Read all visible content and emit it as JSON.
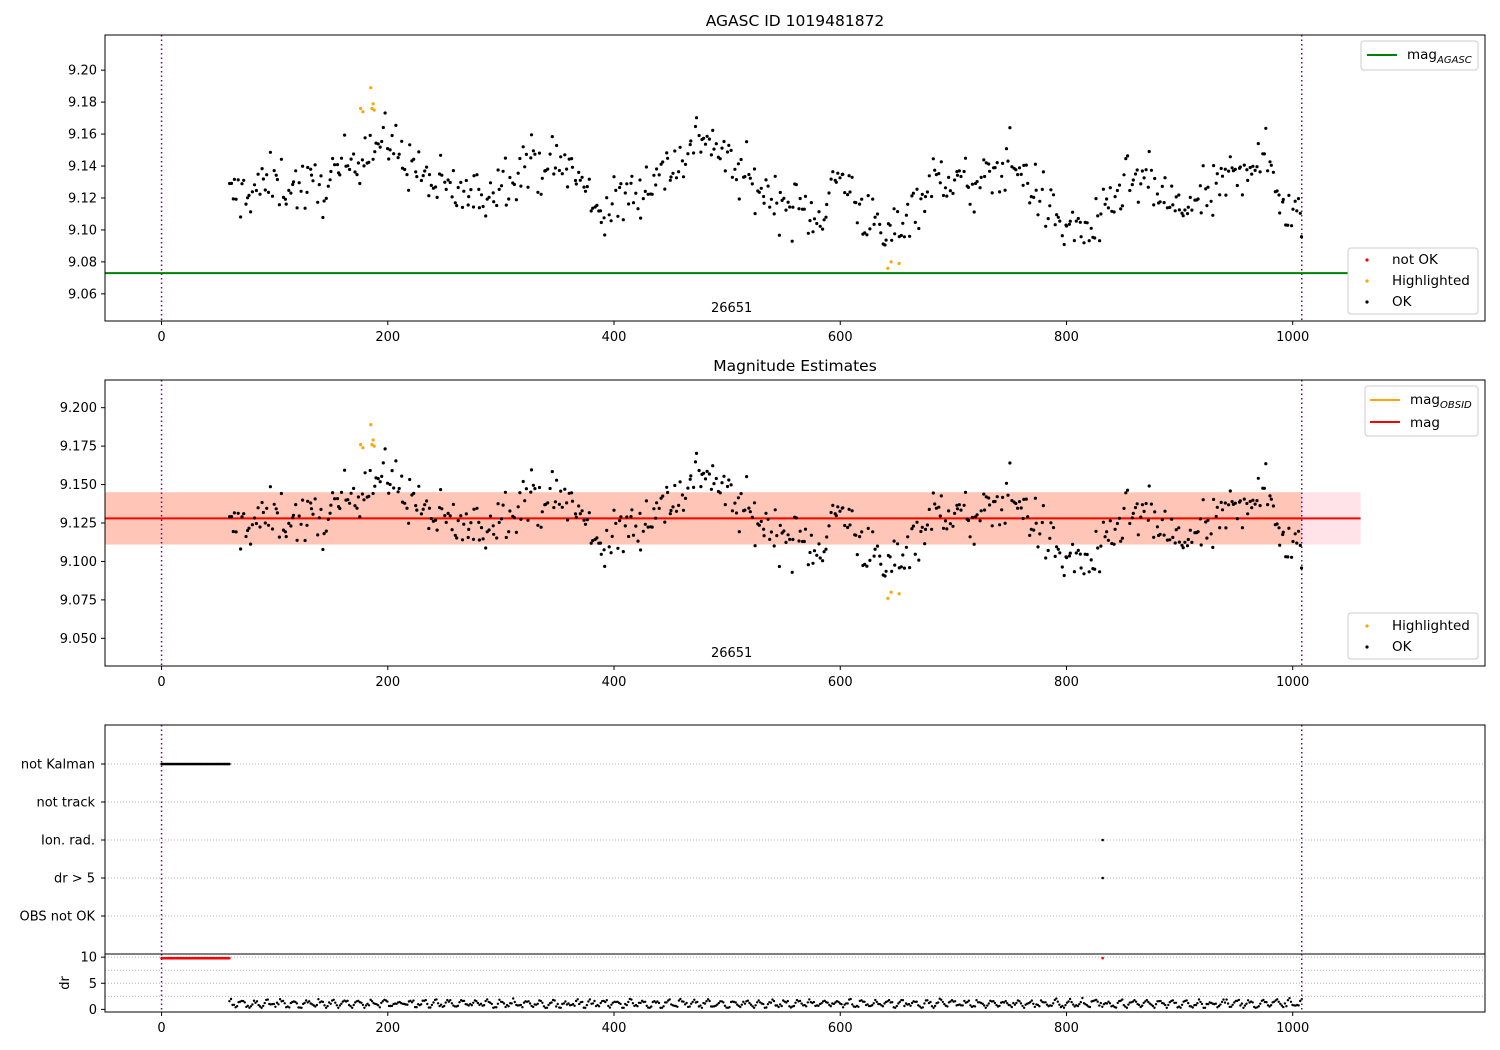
{
  "chart_data": [
    {
      "type": "scatter",
      "title": "AGASC ID 1019481872",
      "xlabel": "",
      "ylabel": "",
      "xlim": [
        -50,
        1170
      ],
      "ylim": [
        9.043,
        9.222
      ],
      "xticks": [
        0,
        200,
        400,
        600,
        800,
        1000
      ],
      "yticks": [
        9.06,
        9.08,
        9.1,
        9.12,
        9.14,
        9.16,
        9.18,
        9.2
      ],
      "ytick_labels": [
        "9.06",
        "9.08",
        "9.10",
        "9.12",
        "9.14",
        "9.16",
        "9.18",
        "9.20"
      ],
      "vlines": [
        0,
        1008
      ],
      "hline": {
        "name": "mag",
        "name_sub": "AGASC",
        "value": 9.073,
        "color": "#008000"
      },
      "obsid_annotation": {
        "text": "26651",
        "x": 504
      },
      "ok_points": {
        "name": "OK",
        "color": "#000000",
        "x_range": [
          60,
          1008
        ],
        "count": 600,
        "trend": [
          [
            60,
            9.12
          ],
          [
            100,
            9.13
          ],
          [
            140,
            9.125
          ],
          [
            180,
            9.152
          ],
          [
            200,
            9.155
          ],
          [
            240,
            9.128
          ],
          [
            280,
            9.12
          ],
          [
            320,
            9.142
          ],
          [
            360,
            9.14
          ],
          [
            390,
            9.11
          ],
          [
            420,
            9.125
          ],
          [
            460,
            9.145
          ],
          [
            480,
            9.162
          ],
          [
            500,
            9.142
          ],
          [
            540,
            9.12
          ],
          [
            580,
            9.108
          ],
          [
            600,
            9.135
          ],
          [
            620,
            9.112
          ],
          [
            640,
            9.093
          ],
          [
            660,
            9.112
          ],
          [
            690,
            9.135
          ],
          [
            720,
            9.125
          ],
          [
            750,
            9.145
          ],
          [
            780,
            9.118
          ],
          [
            800,
            9.1
          ],
          [
            830,
            9.102
          ],
          [
            850,
            9.128
          ],
          [
            870,
            9.13
          ],
          [
            900,
            9.112
          ],
          [
            930,
            9.122
          ],
          [
            960,
            9.143
          ],
          [
            980,
            9.142
          ],
          [
            995,
            9.11
          ],
          [
            1008,
            9.112
          ]
        ]
      },
      "highlighted_points": {
        "name": "Highlighted",
        "color": "#FFA500",
        "points": [
          [
            176,
            9.176
          ],
          [
            178,
            9.174
          ],
          [
            185,
            9.189
          ],
          [
            186,
            9.176
          ],
          [
            187,
            9.179
          ],
          [
            188,
            9.175
          ],
          [
            642,
            9.076
          ],
          [
            645,
            9.08
          ],
          [
            652,
            9.079
          ]
        ]
      },
      "legend_top": {
        "placement": "upper right",
        "entries": [
          {
            "name": "mag",
            "sub": "AGASC",
            "color": "#008000"
          }
        ]
      },
      "legend_bottom": {
        "placement": "lower right",
        "entries": [
          {
            "name": "not OK",
            "color": "#FF0000"
          },
          {
            "name": "Highlighted",
            "color": "#FFA500"
          },
          {
            "name": "OK",
            "color": "#000000"
          }
        ]
      }
    },
    {
      "type": "scatter",
      "title": "Magnitude Estimates",
      "xlabel": "",
      "ylabel": "",
      "xlim": [
        -50,
        1170
      ],
      "ylim": [
        9.032,
        9.218
      ],
      "xticks": [
        0,
        200,
        400,
        600,
        800,
        1000
      ],
      "yticks": [
        9.05,
        9.075,
        9.1,
        9.125,
        9.15,
        9.175,
        9.2
      ],
      "ytick_labels": [
        "9.050",
        "9.075",
        "9.100",
        "9.125",
        "9.150",
        "9.175",
        "9.200"
      ],
      "vlines": [
        0,
        1008
      ],
      "mag_line": {
        "name": "mag",
        "value": 9.128,
        "color": "#FF0000"
      },
      "obsid_line": {
        "name": "mag",
        "name_sub": "OBSID",
        "value": 9.128,
        "x_range": [
          60,
          1008
        ],
        "color": "#FFA500"
      },
      "mag_band": {
        "x_range": [
          -50,
          1060
        ],
        "low": 9.111,
        "high": 9.145,
        "color": "#FFC0CB"
      },
      "obsid_band": {
        "x_range": [
          60,
          1008
        ],
        "low": 9.111,
        "high": 9.145,
        "color": "#FFA07A"
      },
      "obsid_annotation": {
        "text": "26651",
        "x": 504
      },
      "legend_top": {
        "placement": "upper right",
        "entries": [
          {
            "name": "mag",
            "sub": "OBSID",
            "color": "#FFA500"
          },
          {
            "name": "mag",
            "color": "#FF0000"
          }
        ]
      },
      "legend_bottom": {
        "placement": "lower right",
        "entries": [
          {
            "name": "Highlighted",
            "color": "#FFA500"
          },
          {
            "name": "OK",
            "color": "#000000"
          }
        ]
      }
    },
    {
      "type": "scatter",
      "title": "",
      "xlim": [
        -50,
        1170
      ],
      "xticks": [
        0,
        200,
        400,
        600,
        800,
        1000
      ],
      "categories": [
        "not Kalman",
        "not track",
        "Ion. rad.",
        "dr > 5",
        "OBS not OK"
      ],
      "flags": [
        {
          "category": "not Kalman",
          "x_range": [
            0,
            60
          ]
        },
        {
          "category": "Ion. rad.",
          "x": [
            832
          ]
        },
        {
          "category": "dr > 5",
          "x": [
            832
          ]
        }
      ],
      "vlines": [
        0,
        1008
      ]
    },
    {
      "type": "scatter",
      "title": "",
      "ylabel": "dr",
      "xlim": [
        -50,
        1170
      ],
      "ylim": [
        -0.5,
        10.6
      ],
      "yticks": [
        0,
        5,
        10
      ],
      "xticks": [
        0,
        200,
        400,
        600,
        800,
        1000
      ],
      "capped_points": {
        "value": 9.8,
        "x_range": [
          0,
          60
        ],
        "extra_x": [
          832
        ],
        "color": "#FF0000"
      },
      "dr_points": {
        "x_range": [
          60,
          1008
        ],
        "range": [
          0.3,
          2.2
        ],
        "color": "#000000"
      },
      "vlines": [
        0,
        1008
      ]
    }
  ]
}
